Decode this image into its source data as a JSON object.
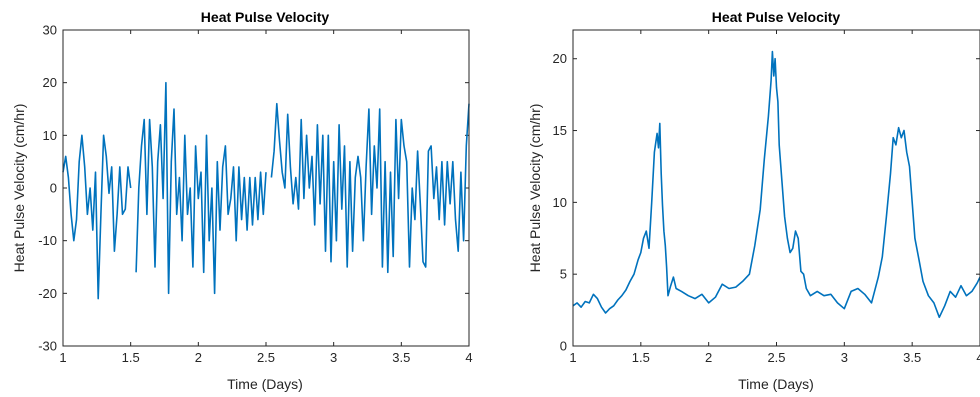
{
  "colors": {
    "series": "#0072BD",
    "axis": "#262626"
  },
  "chart_data": [
    {
      "type": "line",
      "title": "Heat Pulse Velocity",
      "xlabel": "Time (Days)",
      "ylabel": "Heat Pulse Velocity (cm/hr)",
      "xlim": [
        1,
        4
      ],
      "ylim": [
        -30,
        30
      ],
      "xticks": [
        1,
        1.5,
        2,
        2.5,
        3,
        3.5,
        4
      ],
      "xtick_labels": [
        "1",
        "1.5",
        "2",
        "2.5",
        "3",
        "3.5",
        "4"
      ],
      "yticks": [
        -30,
        -20,
        -10,
        0,
        10,
        20,
        30
      ],
      "ytick_labels": [
        "-30",
        "-20",
        "-10",
        "0",
        "10",
        "20",
        "30"
      ],
      "grid": false,
      "series": [
        {
          "segments": [
            {
              "x": [
                1.0,
                1.02,
                1.04,
                1.06,
                1.08,
                1.1,
                1.12,
                1.14,
                1.16,
                1.18,
                1.2,
                1.22,
                1.24,
                1.26,
                1.28,
                1.3,
                1.32,
                1.34,
                1.36,
                1.38,
                1.4,
                1.42,
                1.44,
                1.46,
                1.48,
                1.5
              ],
              "y": [
                3,
                6,
                2,
                -5,
                -10,
                -6,
                5,
                10,
                4,
                -5,
                0,
                -8,
                3,
                -21,
                -5,
                10,
                6,
                -1,
                4,
                -12,
                -5,
                4,
                -5,
                -4,
                4,
                0
              ]
            },
            {
              "x": [
                1.54,
                1.56,
                1.58,
                1.6,
                1.62,
                1.64,
                1.66,
                1.68,
                1.7,
                1.72,
                1.74,
                1.76,
                1.78,
                1.8,
                1.82,
                1.84,
                1.86,
                1.88,
                1.9,
                1.92,
                1.94,
                1.96,
                1.98,
                2.0,
                2.02,
                2.04,
                2.06,
                2.08,
                2.1,
                2.12,
                2.14,
                2.16,
                2.18,
                2.2,
                2.22,
                2.24,
                2.26,
                2.28,
                2.3,
                2.32,
                2.34,
                2.36,
                2.38,
                2.4,
                2.42,
                2.44,
                2.46,
                2.48,
                2.5
              ],
              "y": [
                -16,
                0,
                8,
                13,
                -5,
                13,
                4,
                -15,
                5,
                12,
                -2,
                20,
                -20,
                5,
                15,
                -5,
                2,
                -10,
                10,
                -5,
                0,
                -15,
                8,
                -2,
                3,
                -16,
                10,
                -10,
                0,
                -20,
                5,
                -8,
                4,
                8,
                -5,
                -2,
                4,
                -10,
                4,
                -6,
                2,
                -8,
                2,
                -7,
                2,
                -6,
                3,
                -5,
                3
              ]
            },
            {
              "x": [
                2.54,
                2.56,
                2.58,
                2.6,
                2.62,
                2.64,
                2.66,
                2.68,
                2.7,
                2.72,
                2.74,
                2.76,
                2.78,
                2.8,
                2.82,
                2.84,
                2.86,
                2.88,
                2.9,
                2.92,
                2.94,
                2.96,
                2.98,
                3.0,
                3.02,
                3.04,
                3.06,
                3.08,
                3.1,
                3.12,
                3.14,
                3.16,
                3.18,
                3.2,
                3.22,
                3.24,
                3.26,
                3.28,
                3.3,
                3.32,
                3.34,
                3.36,
                3.38,
                3.4,
                3.42,
                3.44,
                3.46,
                3.48,
                3.5,
                3.52,
                3.54,
                3.56,
                3.58,
                3.6,
                3.62,
                3.64,
                3.66,
                3.68,
                3.7,
                3.72,
                3.74,
                3.76,
                3.78,
                3.8,
                3.82,
                3.84,
                3.86,
                3.88,
                3.9,
                3.92,
                3.94,
                3.96,
                3.98,
                4.0
              ],
              "y": [
                2,
                7,
                16,
                9,
                3,
                0,
                14,
                4,
                -3,
                2,
                -4,
                13,
                -2,
                10,
                0,
                6,
                -7,
                12,
                -3,
                10,
                -12,
                10,
                -14,
                5,
                -10,
                12,
                -4,
                8,
                -15,
                5,
                -12,
                2,
                6,
                2,
                -10,
                4,
                15,
                -5,
                8,
                0,
                15,
                -15,
                5,
                -16,
                3,
                -13,
                13,
                -2,
                13,
                8,
                5,
                -15,
                0,
                -6,
                7,
                -3,
                -14,
                -15,
                7,
                8,
                -2,
                4,
                -6,
                5,
                -7,
                5,
                -3,
                5,
                -6,
                -12,
                3,
                -10,
                8,
                16
              ]
            }
          ]
        }
      ]
    },
    {
      "type": "line",
      "title": "Heat Pulse Velocity",
      "xlabel": "Time (Days)",
      "ylabel": "Heat Pulse Velocity (cm/hr)",
      "xlim": [
        1,
        4
      ],
      "ylim": [
        0,
        22
      ],
      "xticks": [
        1,
        1.5,
        2,
        2.5,
        3,
        3.5,
        4
      ],
      "xtick_labels": [
        "1",
        "1.5",
        "2",
        "2.5",
        "3",
        "3.5",
        "4"
      ],
      "yticks": [
        0,
        5,
        10,
        15,
        20
      ],
      "ytick_labels": [
        "0",
        "5",
        "10",
        "15",
        "20"
      ],
      "grid": false,
      "series": [
        {
          "segments": [
            {
              "x": [
                1.0,
                1.03,
                1.06,
                1.09,
                1.12,
                1.15,
                1.18,
                1.21,
                1.24,
                1.27,
                1.3,
                1.33,
                1.36,
                1.39,
                1.42,
                1.45,
                1.48,
                1.5,
                1.52,
                1.54,
                1.56,
                1.58,
                1.6,
                1.62,
                1.63,
                1.64,
                1.65,
                1.66,
                1.67,
                1.68,
                1.69,
                1.7,
                1.72,
                1.74,
                1.76,
                1.8,
                1.85,
                1.9,
                1.95,
                2.0,
                2.05,
                2.1,
                2.15,
                2.2,
                2.25,
                2.3,
                2.34,
                2.38,
                2.41,
                2.44,
                2.46,
                2.47,
                2.48,
                2.49,
                2.5,
                2.51,
                2.52,
                2.54,
                2.56,
                2.58,
                2.6,
                2.62,
                2.64,
                2.66,
                2.68,
                2.7,
                2.72,
                2.75,
                2.8,
                2.85,
                2.9,
                2.95,
                3.0,
                3.05,
                3.1,
                3.15,
                3.2,
                3.25,
                3.28,
                3.31,
                3.34,
                3.36,
                3.38,
                3.4,
                3.42,
                3.44,
                3.46,
                3.48,
                3.5,
                3.52,
                3.55,
                3.58,
                3.62,
                3.66,
                3.7,
                3.74,
                3.78,
                3.82,
                3.86,
                3.9,
                3.94,
                3.98,
                4.0
              ],
              "y": [
                2.8,
                3.0,
                2.7,
                3.1,
                3.0,
                3.6,
                3.3,
                2.7,
                2.3,
                2.6,
                2.8,
                3.2,
                3.5,
                3.9,
                4.5,
                5.0,
                6.0,
                6.5,
                7.5,
                8.0,
                6.8,
                10.0,
                13.5,
                14.8,
                13.8,
                15.5,
                12.0,
                9.8,
                8.0,
                7.0,
                5.5,
                3.5,
                4.2,
                4.8,
                4.0,
                3.8,
                3.5,
                3.3,
                3.6,
                3.0,
                3.4,
                4.3,
                4.0,
                4.1,
                4.5,
                5.0,
                7.0,
                9.5,
                13.0,
                16.0,
                18.5,
                20.5,
                18.8,
                20.0,
                18.0,
                17.0,
                14.0,
                11.5,
                9.0,
                7.5,
                6.5,
                6.8,
                8.0,
                7.5,
                5.2,
                5.0,
                4.0,
                3.5,
                3.8,
                3.5,
                3.6,
                3.0,
                2.6,
                3.8,
                4.0,
                3.6,
                3.0,
                4.8,
                6.2,
                9.0,
                12.0,
                14.5,
                14.0,
                15.2,
                14.5,
                15.0,
                13.5,
                12.5,
                10.0,
                7.5,
                6.0,
                4.5,
                3.5,
                3.0,
                2.0,
                2.8,
                3.8,
                3.4,
                4.2,
                3.5,
                3.8,
                4.4,
                4.8
              ]
            }
          ]
        }
      ]
    }
  ]
}
